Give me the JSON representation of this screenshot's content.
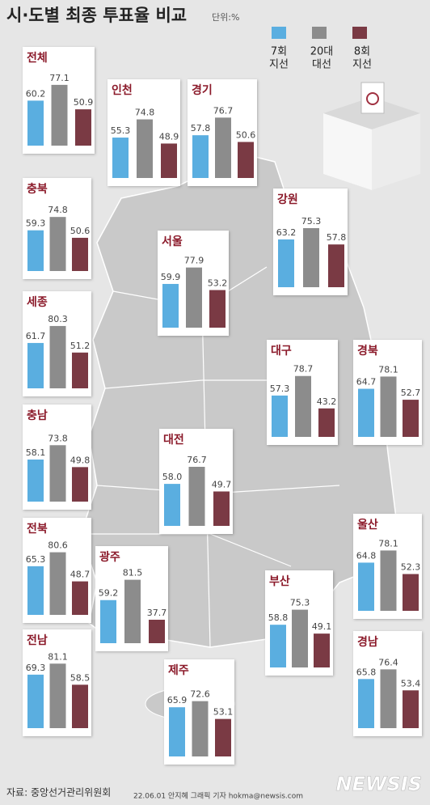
{
  "title": "시·도별 최종 투표율 비교",
  "unit": "단위:%",
  "legend": [
    {
      "label": [
        "7회",
        "지선"
      ],
      "color": "#5aaee0"
    },
    {
      "label": [
        "20대",
        "대선"
      ],
      "color": "#8c8c8c"
    },
    {
      "label": [
        "8회",
        "지선"
      ],
      "color": "#7a3a44"
    }
  ],
  "chart_data": [
    {
      "type": "bar",
      "title": "전체",
      "values": [
        60.2,
        77.1,
        50.9
      ],
      "ylim": [
        12,
        90
      ]
    },
    {
      "type": "bar",
      "title": "인천",
      "values": [
        55.3,
        74.8,
        48.9
      ],
      "ylim": [
        12,
        90
      ]
    },
    {
      "type": "bar",
      "title": "경기",
      "values": [
        57.8,
        76.7,
        50.6
      ],
      "ylim": [
        12,
        90
      ]
    },
    {
      "type": "bar",
      "title": "충북",
      "values": [
        59.3,
        74.8,
        50.6
      ],
      "ylim": [
        12,
        90
      ]
    },
    {
      "type": "bar",
      "title": "강원",
      "values": [
        63.2,
        75.3,
        57.8
      ],
      "ylim": [
        12,
        90
      ]
    },
    {
      "type": "bar",
      "title": "서울",
      "values": [
        59.9,
        77.9,
        53.2
      ],
      "ylim": [
        12,
        90
      ]
    },
    {
      "type": "bar",
      "title": "세종",
      "values": [
        61.7,
        80.3,
        51.2
      ],
      "ylim": [
        12,
        90
      ]
    },
    {
      "type": "bar",
      "title": "대구",
      "values": [
        57.3,
        78.7,
        43.2
      ],
      "ylim": [
        12,
        90
      ]
    },
    {
      "type": "bar",
      "title": "경북",
      "values": [
        64.7,
        78.1,
        52.7
      ],
      "ylim": [
        12,
        90
      ]
    },
    {
      "type": "bar",
      "title": "충남",
      "values": [
        58.1,
        73.8,
        49.8
      ],
      "ylim": [
        12,
        90
      ]
    },
    {
      "type": "bar",
      "title": "대전",
      "values": [
        58,
        76.7,
        49.7
      ],
      "value_labels": [
        "58.0",
        "76.7",
        "49.7"
      ],
      "ylim": [
        12,
        90
      ]
    },
    {
      "type": "bar",
      "title": "울산",
      "values": [
        64.8,
        78.1,
        52.3
      ],
      "ylim": [
        12,
        90
      ]
    },
    {
      "type": "bar",
      "title": "전북",
      "values": [
        65.3,
        80.6,
        48.7
      ],
      "ylim": [
        12,
        90
      ]
    },
    {
      "type": "bar",
      "title": "광주",
      "values": [
        59.2,
        81.5,
        37.7
      ],
      "ylim": [
        12,
        90
      ]
    },
    {
      "type": "bar",
      "title": "부산",
      "values": [
        58.8,
        75.3,
        49.1
      ],
      "ylim": [
        12,
        90
      ]
    },
    {
      "type": "bar",
      "title": "전남",
      "values": [
        69.3,
        81.1,
        58.5
      ],
      "ylim": [
        12,
        90
      ]
    },
    {
      "type": "bar",
      "title": "제주",
      "values": [
        65.9,
        72.6,
        53.1
      ],
      "ylim": [
        12,
        90
      ]
    },
    {
      "type": "bar",
      "title": "경남",
      "values": [
        65.8,
        76.4,
        53.4
      ],
      "ylim": [
        12,
        90
      ]
    }
  ],
  "source": "자료: 중앙선거관리위원회",
  "credit": "22.06.01 안지혜 그래픽 기자 hokma@newsis.com",
  "logo": "NEWSIS"
}
